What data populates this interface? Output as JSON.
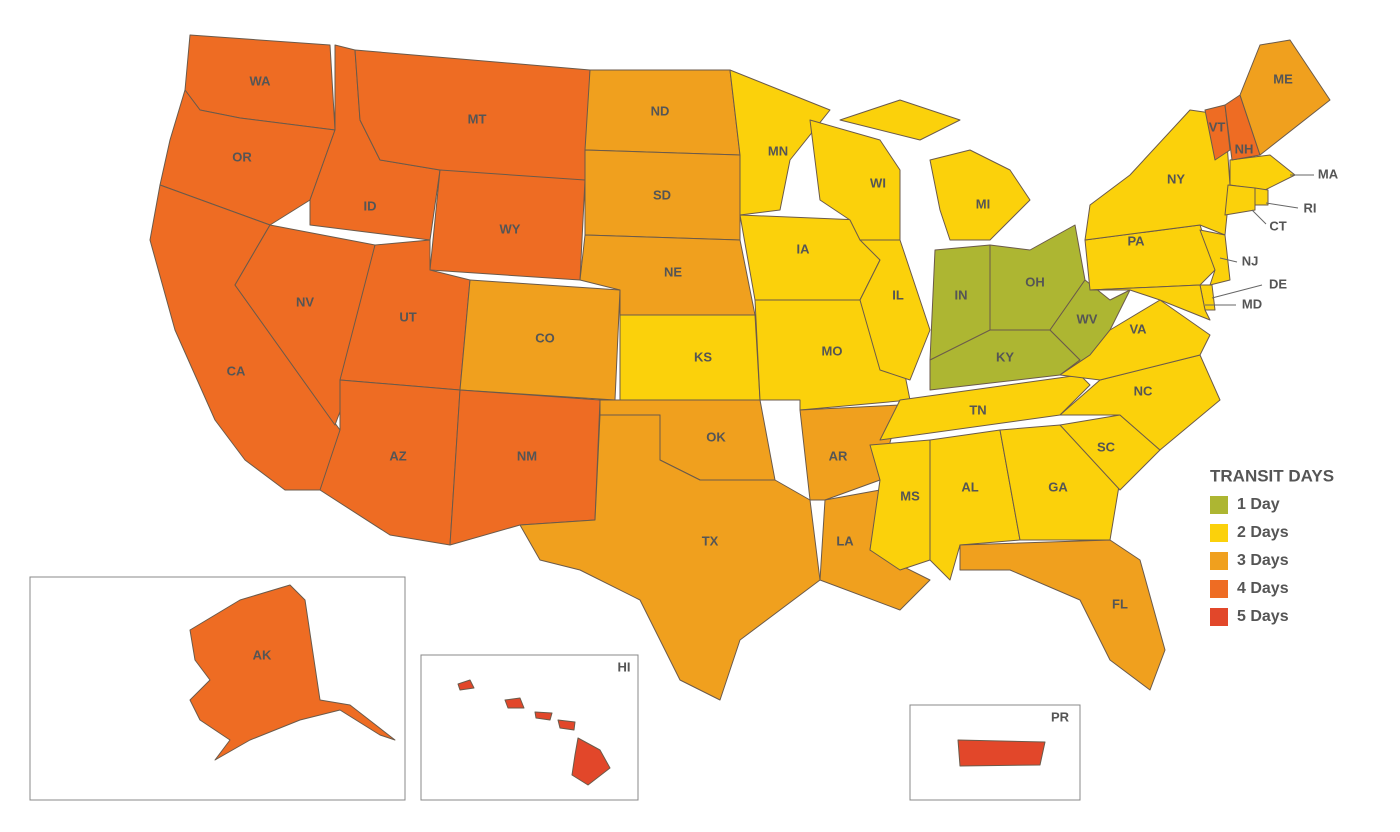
{
  "legend": {
    "title": "TRANSIT DAYS",
    "zones": [
      {
        "label": "1 Day",
        "color": "#adb632",
        "states": [
          "IN",
          "OH",
          "KY",
          "WV"
        ]
      },
      {
        "label": "2 Days",
        "color": "#fbd10b",
        "states": [
          "MN",
          "WI",
          "IA",
          "IL",
          "MI",
          "MO",
          "KS",
          "TN",
          "MS",
          "AL",
          "GA",
          "SC",
          "NC",
          "VA",
          "PA",
          "NY",
          "NJ",
          "DE",
          "MD",
          "MA",
          "RI",
          "CT"
        ]
      },
      {
        "label": "3 Days",
        "color": "#f0a01e",
        "states": [
          "ND",
          "SD",
          "NE",
          "CO",
          "OK",
          "TX",
          "AR",
          "LA",
          "FL",
          "ME"
        ]
      },
      {
        "label": "4 Days",
        "color": "#ee6c23",
        "states": [
          "WA",
          "OR",
          "CA",
          "NV",
          "ID",
          "MT",
          "WY",
          "UT",
          "AZ",
          "NM",
          "AK",
          "VT",
          "NH"
        ]
      },
      {
        "label": "5 Days",
        "color": "#e2472a",
        "states": [
          "HI",
          "PR"
        ]
      }
    ]
  }
}
